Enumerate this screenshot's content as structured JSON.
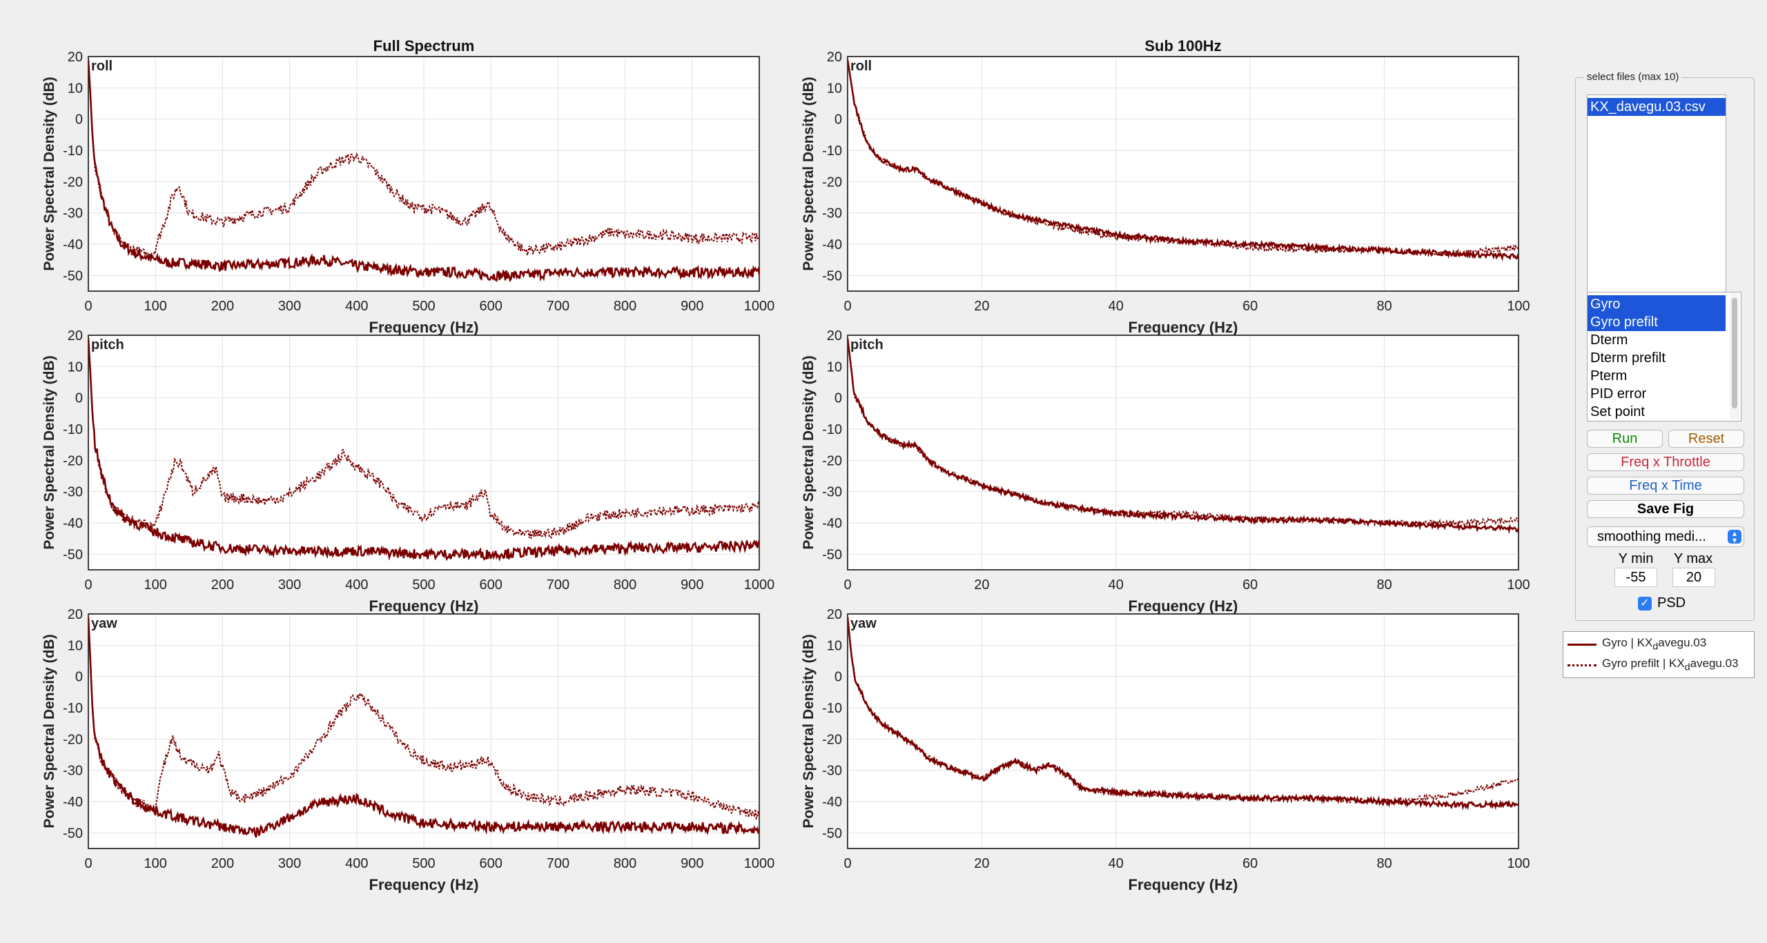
{
  "chart_data": [
    {
      "type": "line",
      "title": "Full Spectrum",
      "axis_label": "roll",
      "xlabel": "Frequency (Hz)",
      "ylabel": "Power Spectral Density (dB)",
      "xlim": [
        0,
        1000
      ],
      "ylim": [
        -55,
        20
      ],
      "xticks": [
        0,
        100,
        200,
        300,
        400,
        500,
        600,
        700,
        800,
        900,
        1000
      ],
      "yticks": [
        20,
        10,
        0,
        -10,
        -20,
        -30,
        -40,
        -50
      ],
      "series": [
        {
          "name": "Gyro | KX_davegu.03",
          "style": "solid",
          "x": [
            0,
            3,
            6,
            10,
            20,
            35,
            50,
            70,
            100,
            120,
            150,
            200,
            300,
            350,
            400,
            450,
            500,
            550,
            600,
            650,
            700,
            800,
            900,
            1000
          ],
          "y": [
            19,
            8,
            -5,
            -15,
            -25,
            -35,
            -40,
            -43,
            -45,
            -46,
            -46,
            -47,
            -46,
            -45,
            -47,
            -48,
            -49,
            -49,
            -50,
            -50,
            -49,
            -49,
            -49,
            -49
          ]
        },
        {
          "name": "Gyro prefilt | KX_davegu.03",
          "style": "dotted",
          "x": [
            0,
            3,
            6,
            10,
            20,
            35,
            50,
            70,
            95,
            110,
            125,
            135,
            150,
            180,
            200,
            250,
            280,
            300,
            330,
            350,
            380,
            400,
            420,
            450,
            480,
            520,
            560,
            580,
            595,
            620,
            650,
            700,
            750,
            780,
            800,
            850,
            900,
            1000
          ],
          "y": [
            19,
            8,
            -5,
            -15,
            -25,
            -35,
            -40,
            -42,
            -44,
            -35,
            -25,
            -21,
            -30,
            -32,
            -33,
            -30,
            -29,
            -28,
            -20,
            -16,
            -13,
            -12,
            -15,
            -22,
            -28,
            -29,
            -33,
            -30,
            -27,
            -37,
            -42,
            -41,
            -38,
            -36,
            -37,
            -37,
            -38,
            -38
          ]
        }
      ]
    },
    {
      "type": "line",
      "title": "Sub 100Hz",
      "axis_label": "roll",
      "xlabel": "Frequency (Hz)",
      "ylabel": "Power Spectral Density (dB)",
      "xlim": [
        0,
        100
      ],
      "ylim": [
        -55,
        20
      ],
      "xticks": [
        0,
        20,
        40,
        60,
        80,
        100
      ],
      "yticks": [
        20,
        10,
        0,
        -10,
        -20,
        -30,
        -40,
        -50
      ],
      "series": [
        {
          "name": "Gyro | KX_davegu.03",
          "style": "solid",
          "x": [
            0,
            0.5,
            1,
            2,
            3,
            5,
            8,
            10,
            12,
            15,
            20,
            25,
            30,
            40,
            50,
            60,
            70,
            80,
            90,
            100
          ],
          "y": [
            19,
            12,
            5,
            -2,
            -8,
            -13,
            -16,
            -16,
            -19,
            -22,
            -27,
            -31,
            -33,
            -37,
            -39,
            -40,
            -41,
            -42,
            -43,
            -44
          ]
        },
        {
          "name": "Gyro prefilt | KX_davegu.03",
          "style": "dotted",
          "x": [
            0,
            0.5,
            1,
            2,
            3,
            5,
            8,
            10,
            12,
            15,
            20,
            25,
            30,
            40,
            50,
            60,
            70,
            80,
            90,
            100
          ],
          "y": [
            19,
            12,
            5,
            -2,
            -8,
            -13,
            -16,
            -16,
            -19,
            -22,
            -27,
            -31,
            -34,
            -38,
            -39,
            -41,
            -42,
            -42,
            -43,
            -41
          ]
        }
      ]
    },
    {
      "type": "line",
      "title": "",
      "axis_label": "pitch",
      "xlabel": "Frequency (Hz)",
      "ylabel": "Power Spectral Density (dB)",
      "xlim": [
        0,
        1000
      ],
      "ylim": [
        -55,
        20
      ],
      "xticks": [
        0,
        100,
        200,
        300,
        400,
        500,
        600,
        700,
        800,
        900,
        1000
      ],
      "yticks": [
        20,
        10,
        0,
        -10,
        -20,
        -30,
        -40,
        -50
      ],
      "series": [
        {
          "name": "Gyro | KX_davegu.03",
          "style": "solid",
          "x": [
            0,
            3,
            6,
            10,
            20,
            35,
            50,
            70,
            100,
            150,
            200,
            300,
            400,
            500,
            600,
            700,
            800,
            900,
            1000
          ],
          "y": [
            19,
            8,
            -5,
            -15,
            -25,
            -34,
            -38,
            -40,
            -43,
            -46,
            -48,
            -49,
            -49,
            -50,
            -50,
            -49,
            -48,
            -48,
            -47
          ]
        },
        {
          "name": "Gyro prefilt | KX_davegu.03",
          "style": "dotted",
          "x": [
            0,
            3,
            6,
            10,
            20,
            35,
            50,
            70,
            100,
            115,
            130,
            140,
            155,
            175,
            190,
            200,
            230,
            260,
            290,
            320,
            350,
            380,
            400,
            420,
            440,
            460,
            480,
            500,
            530,
            560,
            590,
            600,
            620,
            650,
            700,
            750,
            800,
            850,
            900,
            1000
          ],
          "y": [
            19,
            8,
            -5,
            -15,
            -25,
            -34,
            -38,
            -40,
            -41,
            -30,
            -20,
            -22,
            -30,
            -26,
            -23,
            -32,
            -32,
            -33,
            -32,
            -28,
            -24,
            -18,
            -22,
            -25,
            -28,
            -34,
            -36,
            -38,
            -34,
            -35,
            -30,
            -37,
            -42,
            -44,
            -43,
            -38,
            -37,
            -36,
            -36,
            -35
          ]
        }
      ]
    },
    {
      "type": "line",
      "title": "",
      "axis_label": "pitch",
      "xlabel": "Frequency (Hz)",
      "ylabel": "Power Spectral Density (dB)",
      "xlim": [
        0,
        100
      ],
      "ylim": [
        -55,
        20
      ],
      "xticks": [
        0,
        20,
        40,
        60,
        80,
        100
      ],
      "yticks": [
        20,
        10,
        0,
        -10,
        -20,
        -30,
        -40,
        -50
      ],
      "series": [
        {
          "name": "Gyro | KX_davegu.03",
          "style": "solid",
          "x": [
            0,
            0.5,
            1,
            2,
            3,
            5,
            8,
            10,
            12,
            15,
            20,
            25,
            30,
            40,
            50,
            60,
            70,
            80,
            90,
            100
          ],
          "y": [
            19,
            10,
            1,
            -3,
            -8,
            -12,
            -15,
            -15,
            -20,
            -24,
            -28,
            -31,
            -34,
            -37,
            -38,
            -39,
            -39,
            -40,
            -41,
            -42
          ]
        },
        {
          "name": "Gyro prefilt | KX_davegu.03",
          "style": "dotted",
          "x": [
            0,
            0.5,
            1,
            2,
            3,
            5,
            8,
            10,
            12,
            15,
            20,
            25,
            30,
            40,
            50,
            60,
            70,
            80,
            90,
            100
          ],
          "y": [
            19,
            10,
            1,
            -3,
            -8,
            -12,
            -15,
            -15,
            -20,
            -24,
            -28,
            -31,
            -34,
            -37,
            -37,
            -39,
            -39,
            -40,
            -40,
            -39
          ]
        }
      ]
    },
    {
      "type": "line",
      "title": "",
      "axis_label": "yaw",
      "xlabel": "Frequency (Hz)",
      "ylabel": "Power Spectral Density (dB)",
      "xlim": [
        0,
        1000
      ],
      "ylim": [
        -55,
        20
      ],
      "xticks": [
        0,
        100,
        200,
        300,
        400,
        500,
        600,
        700,
        800,
        900,
        1000
      ],
      "yticks": [
        20,
        10,
        0,
        -10,
        -20,
        -30,
        -40,
        -50
      ],
      "series": [
        {
          "name": "Gyro | KX_davegu.03",
          "style": "solid",
          "x": [
            0,
            3,
            6,
            10,
            20,
            35,
            50,
            70,
            100,
            150,
            200,
            250,
            300,
            350,
            400,
            450,
            500,
            600,
            700,
            800,
            900,
            1000
          ],
          "y": [
            19,
            5,
            -10,
            -20,
            -27,
            -32,
            -36,
            -40,
            -43,
            -46,
            -48,
            -50,
            -45,
            -40,
            -39,
            -44,
            -47,
            -48,
            -48,
            -48,
            -48,
            -49
          ]
        },
        {
          "name": "Gyro prefilt | KX_davegu.03",
          "style": "dotted",
          "x": [
            0,
            3,
            6,
            10,
            20,
            35,
            50,
            70,
            100,
            110,
            125,
            140,
            160,
            180,
            195,
            210,
            230,
            260,
            300,
            340,
            370,
            400,
            420,
            440,
            470,
            500,
            540,
            580,
            595,
            620,
            650,
            700,
            750,
            800,
            850,
            900,
            950,
            1000
          ],
          "y": [
            19,
            5,
            -10,
            -20,
            -27,
            -32,
            -36,
            -40,
            -42,
            -30,
            -20,
            -27,
            -28,
            -30,
            -25,
            -37,
            -39,
            -37,
            -32,
            -22,
            -13,
            -6,
            -9,
            -14,
            -22,
            -27,
            -29,
            -28,
            -26,
            -35,
            -38,
            -40,
            -38,
            -36,
            -37,
            -38,
            -42,
            -44
          ]
        }
      ]
    },
    {
      "type": "line",
      "title": "",
      "axis_label": "yaw",
      "xlabel": "Frequency (Hz)",
      "ylabel": "Power Spectral Density (dB)",
      "xlim": [
        0,
        100
      ],
      "ylim": [
        -55,
        20
      ],
      "xticks": [
        0,
        20,
        40,
        60,
        80,
        100
      ],
      "yticks": [
        20,
        10,
        0,
        -10,
        -20,
        -30,
        -40,
        -50
      ],
      "series": [
        {
          "name": "Gyro | KX_davegu.03",
          "style": "solid",
          "x": [
            0,
            0.5,
            1,
            2,
            3,
            5,
            8,
            10,
            12,
            15,
            18,
            20,
            22,
            25,
            28,
            30,
            33,
            35,
            40,
            50,
            60,
            70,
            80,
            90,
            100
          ],
          "y": [
            19,
            8,
            0,
            -5,
            -10,
            -15,
            -19,
            -22,
            -26,
            -29,
            -31,
            -33,
            -30,
            -27,
            -30,
            -28,
            -32,
            -36,
            -37,
            -38,
            -39,
            -39,
            -40,
            -41,
            -41
          ]
        },
        {
          "name": "Gyro prefilt | KX_davegu.03",
          "style": "dotted",
          "x": [
            0,
            0.5,
            1,
            2,
            3,
            5,
            8,
            10,
            12,
            15,
            18,
            20,
            22,
            25,
            28,
            30,
            33,
            35,
            40,
            50,
            60,
            70,
            80,
            90,
            100
          ],
          "y": [
            19,
            8,
            0,
            -5,
            -10,
            -15,
            -19,
            -22,
            -26,
            -29,
            -31,
            -33,
            -30,
            -27,
            -30,
            -28,
            -32,
            -36,
            -37,
            -38,
            -39,
            -39,
            -40,
            -38,
            -33
          ]
        }
      ]
    }
  ],
  "colors": {
    "line": "#7a0000",
    "grid": "#e2e2e2",
    "axis": "#262626"
  },
  "panel": {
    "title": "select files (max 10)",
    "files": [
      "KX_davegu.03.csv"
    ],
    "signals": [
      "Gyro",
      "Gyro prefilt",
      "Dterm",
      "Dterm prefilt",
      "Pterm",
      "PID error",
      "Set point"
    ],
    "selected_signals": [
      0,
      1
    ],
    "run_label": "Run",
    "reset_label": "Reset",
    "freq_throttle_label": "Freq x Throttle",
    "freq_time_label": "Freq x Time",
    "save_label": "Save Fig",
    "smoothing_value": "smoothing medi...",
    "ymin_label": "Y min",
    "ymax_label": "Y max",
    "ymin_value": "-55",
    "ymax_value": "20",
    "psd_label": "PSD",
    "psd_checked": true,
    "run_color": "#0a8a0a",
    "reset_color": "#a05a00",
    "freq_throttle_color": "#c8283a",
    "freq_time_color": "#2060c8"
  },
  "legend": {
    "gyro_main": "Gyro | KX",
    "gyro_sub": "d",
    "gyro_tail": "avegu.03",
    "prefilt_main": "Gyro prefilt | KX",
    "prefilt_sub": "d",
    "prefilt_tail": "avegu.03"
  }
}
